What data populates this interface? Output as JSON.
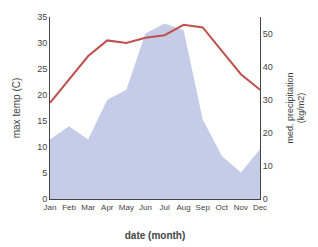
{
  "chart_data": {
    "type": "line",
    "categories": [
      "Jan",
      "Feb",
      "Mar",
      "Apr",
      "May",
      "Jun",
      "Jul",
      "Aug",
      "Sep",
      "Oct",
      "Nov",
      "Dec"
    ],
    "series": [
      {
        "type": "area",
        "axis": "y2",
        "color": "#c5cce8",
        "values": [
          18,
          22,
          18,
          30,
          33,
          50,
          53,
          51,
          24,
          13,
          8,
          15
        ]
      },
      {
        "type": "line",
        "color": "#c0504d",
        "values": [
          18.5,
          23.0,
          27.5,
          30.5,
          30.0,
          31.0,
          31.5,
          33.5,
          33.0,
          28.5,
          24.0,
          21.0
        ]
      }
    ],
    "xlabel": "date (month)",
    "ylabel": "max temp (C)",
    "y2label": "med. precipitation\n(kg/m2)",
    "ylim": [
      0,
      35
    ],
    "yticks": [
      0,
      5,
      10,
      15,
      20,
      25,
      30,
      35
    ],
    "y2lim": [
      0,
      55
    ],
    "y2ticks": [
      0,
      10,
      20,
      30,
      40,
      50
    ],
    "grid": false
  }
}
